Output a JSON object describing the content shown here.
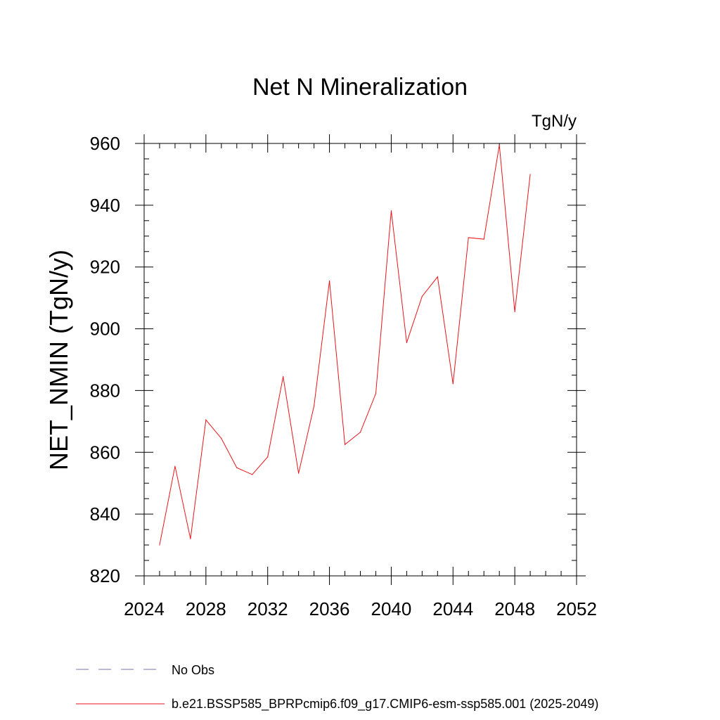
{
  "chart_data": {
    "type": "line",
    "title": "Net N Mineralization",
    "units_label": "TgN/y",
    "ylabel": "NET_NMIN  (TgN/y)",
    "xlabel": "",
    "xlim": [
      2024,
      2052
    ],
    "ylim": [
      820,
      960
    ],
    "x_ticks": [
      2024,
      2028,
      2032,
      2036,
      2040,
      2044,
      2048,
      2052
    ],
    "y_ticks": [
      820,
      840,
      860,
      880,
      900,
      920,
      940,
      960
    ],
    "x_minor_step": 1,
    "y_minor_step": 5,
    "grid": false,
    "legend_position": "bottom-left",
    "legend": [
      {
        "label": "No Obs",
        "color": "#7b6fb0",
        "style": "dashed"
      },
      {
        "label": "b.e21.BSSP585_BPRPcmip6.f09_g17.CMIP6-esm-ssp585.001 (2025-2049)",
        "color": "#e8151b",
        "style": "solid"
      }
    ],
    "series": [
      {
        "name": "b.e21.BSSP585_BPRPcmip6.f09_g17.CMIP6-esm-ssp585.001 (2025-2049)",
        "color": "#e8151b",
        "x": [
          2025,
          2026,
          2027,
          2028,
          2029,
          2030,
          2031,
          2032,
          2033,
          2034,
          2035,
          2036,
          2037,
          2038,
          2039,
          2040,
          2041,
          2042,
          2043,
          2044,
          2045,
          2046,
          2047,
          2048,
          2049
        ],
        "values": [
          830.0,
          855.5,
          832.0,
          870.5,
          864.5,
          855.0,
          852.8,
          858.5,
          884.5,
          853.2,
          875.0,
          915.5,
          862.5,
          866.5,
          879.0,
          938.2,
          895.5,
          910.5,
          916.8,
          882.2,
          929.5,
          929.0,
          959.5,
          905.5,
          950.0
        ]
      }
    ]
  }
}
